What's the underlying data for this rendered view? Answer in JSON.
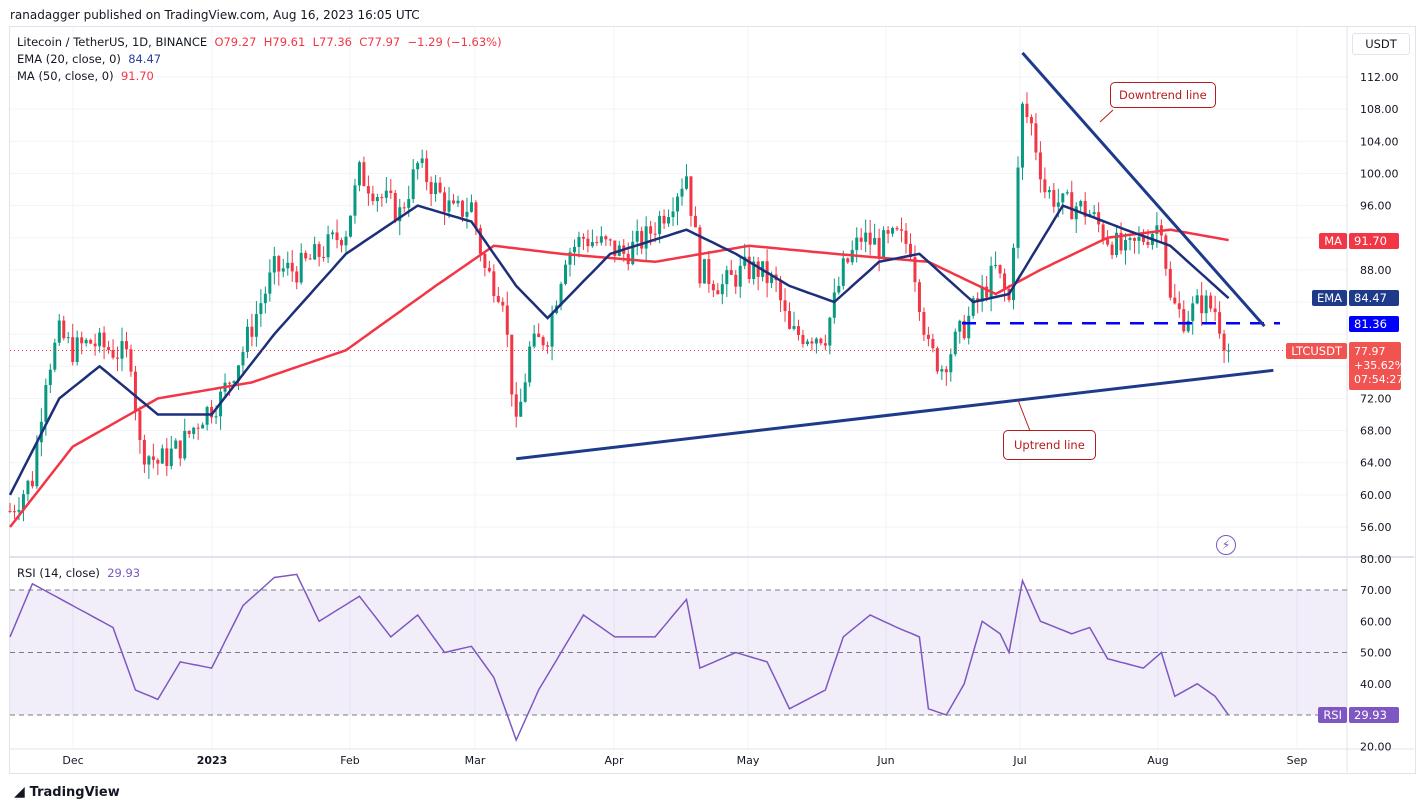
{
  "publisher": "ranadagger published on TradingView.com, Aug 16, 2023 16:05 UTC",
  "legend": {
    "symbol": "Litecoin / TetherUS, 1D, BINANCE",
    "o": "O79.27",
    "h": "H79.61",
    "l": "L77.36",
    "c": "C77.97",
    "change": "−1.29 (−1.63%)",
    "ema": "EMA (20, close, 0)",
    "ema_val": "84.47",
    "ma": "MA (50, close, 0)",
    "ma_val": "91.70",
    "rsi": "RSI (14, close)",
    "rsi_val": "29.93"
  },
  "currency": "USDT",
  "tags": {
    "ma_label": "MA",
    "ma_val": "91.70",
    "ema_label": "EMA",
    "ema_val": "84.47",
    "level": "81.36",
    "sym": "LTCUSDT",
    "price": "77.97",
    "pct": "+35.62%",
    "timer": "07:54:27",
    "rsi_label": "RSI",
    "rsi_val": "29.93"
  },
  "annotations": {
    "downtrend": "Downtrend line",
    "uptrend": "Uptrend line"
  },
  "footer": "TradingView",
  "colors": {
    "up": "#089981",
    "down": "#f23645",
    "ema": "#1e2f7a",
    "ma": "#f23645",
    "trend": "#1e3a8a",
    "rsi": "#7e57c2"
  },
  "chart_data": {
    "type": "candlestick",
    "x_ticks": [
      "Dec",
      "2023",
      "Feb",
      "Mar",
      "Apr",
      "May",
      "Jun",
      "Jul",
      "Aug",
      "Sep"
    ],
    "price_ticks": [
      56,
      60,
      64,
      68,
      72,
      76,
      80,
      84,
      88,
      92,
      96,
      100,
      104,
      108,
      112
    ],
    "rsi_ticks": [
      20,
      30,
      40,
      50,
      60,
      70,
      80
    ],
    "ylim": [
      53,
      116
    ],
    "close_keypoints": [
      [
        "2022-11-17",
        58
      ],
      [
        "2022-11-22",
        62
      ],
      [
        "2022-11-25",
        75
      ],
      [
        "2022-11-28",
        80
      ],
      [
        "2022-12-01",
        78
      ],
      [
        "2022-12-05",
        79
      ],
      [
        "2022-12-10",
        78
      ],
      [
        "2022-12-14",
        77
      ],
      [
        "2022-12-16",
        66
      ],
      [
        "2022-12-20",
        64
      ],
      [
        "2022-12-25",
        66
      ],
      [
        "2022-12-30",
        70
      ],
      [
        "2023-01-03",
        72
      ],
      [
        "2023-01-08",
        78
      ],
      [
        "2023-01-12",
        84
      ],
      [
        "2023-01-15",
        88
      ],
      [
        "2023-01-20",
        88
      ],
      [
        "2023-01-25",
        90
      ],
      [
        "2023-01-31",
        93
      ],
      [
        "2023-02-03",
        100
      ],
      [
        "2023-02-08",
        97
      ],
      [
        "2023-02-12",
        95
      ],
      [
        "2023-02-16",
        101
      ],
      [
        "2023-02-20",
        98
      ],
      [
        "2023-02-24",
        95
      ],
      [
        "2023-02-28",
        96
      ],
      [
        "2023-03-03",
        88
      ],
      [
        "2023-03-07",
        85
      ],
      [
        "2023-03-10",
        68
      ],
      [
        "2023-03-13",
        78
      ],
      [
        "2023-03-17",
        80
      ],
      [
        "2023-03-21",
        90
      ],
      [
        "2023-03-25",
        92
      ],
      [
        "2023-03-30",
        91
      ],
      [
        "2023-04-03",
        90
      ],
      [
        "2023-04-08",
        92
      ],
      [
        "2023-04-13",
        96
      ],
      [
        "2023-04-17",
        100
      ],
      [
        "2023-04-20",
        88
      ],
      [
        "2023-04-25",
        86
      ],
      [
        "2023-04-30",
        88
      ],
      [
        "2023-05-03",
        88
      ],
      [
        "2023-05-07",
        86
      ],
      [
        "2023-05-10",
        80
      ],
      [
        "2023-05-14",
        80
      ],
      [
        "2023-05-18",
        80
      ],
      [
        "2023-05-22",
        88
      ],
      [
        "2023-05-26",
        92
      ],
      [
        "2023-05-30",
        91
      ],
      [
        "2023-06-03",
        92
      ],
      [
        "2023-06-06",
        91
      ],
      [
        "2023-06-10",
        78
      ],
      [
        "2023-06-13",
        76
      ],
      [
        "2023-06-17",
        80
      ],
      [
        "2023-06-21",
        84
      ],
      [
        "2023-06-25",
        88
      ],
      [
        "2023-06-28",
        84
      ],
      [
        "2023-07-01",
        108
      ],
      [
        "2023-07-03",
        106
      ],
      [
        "2023-07-06",
        98
      ],
      [
        "2023-07-10",
        96
      ],
      [
        "2023-07-13",
        96
      ],
      [
        "2023-07-16",
        95
      ],
      [
        "2023-07-20",
        92
      ],
      [
        "2023-07-24",
        90
      ],
      [
        "2023-07-28",
        92
      ],
      [
        "2023-08-01",
        94
      ],
      [
        "2023-08-03",
        84
      ],
      [
        "2023-08-06",
        82
      ],
      [
        "2023-08-10",
        84
      ],
      [
        "2023-08-13",
        83
      ],
      [
        "2023-08-16",
        77.97
      ]
    ],
    "ema20_keypoints": [
      [
        "2022-11-17",
        60
      ],
      [
        "2022-11-28",
        72
      ],
      [
        "2022-12-07",
        76
      ],
      [
        "2022-12-20",
        70
      ],
      [
        "2023-01-01",
        70
      ],
      [
        "2023-01-15",
        80
      ],
      [
        "2023-01-31",
        90
      ],
      [
        "2023-02-16",
        96
      ],
      [
        "2023-02-28",
        94
      ],
      [
        "2023-03-10",
        86
      ],
      [
        "2023-03-17",
        82
      ],
      [
        "2023-03-31",
        90
      ],
      [
        "2023-04-17",
        93
      ],
      [
        "2023-04-28",
        90
      ],
      [
        "2023-05-10",
        86
      ],
      [
        "2023-05-20",
        84
      ],
      [
        "2023-05-30",
        89
      ],
      [
        "2023-06-08",
        90
      ],
      [
        "2023-06-20",
        84
      ],
      [
        "2023-06-28",
        85
      ],
      [
        "2023-07-10",
        96
      ],
      [
        "2023-07-24",
        93
      ],
      [
        "2023-08-03",
        91
      ],
      [
        "2023-08-16",
        84.47
      ]
    ],
    "ma50_keypoints": [
      [
        "2022-11-17",
        56
      ],
      [
        "2022-12-01",
        66
      ],
      [
        "2022-12-20",
        72
      ],
      [
        "2023-01-10",
        74
      ],
      [
        "2023-01-31",
        78
      ],
      [
        "2023-02-20",
        86
      ],
      [
        "2023-03-05",
        91
      ],
      [
        "2023-03-20",
        90
      ],
      [
        "2023-04-10",
        89
      ],
      [
        "2023-05-01",
        91
      ],
      [
        "2023-05-20",
        90
      ],
      [
        "2023-06-10",
        89
      ],
      [
        "2023-06-25",
        85
      ],
      [
        "2023-07-05",
        88
      ],
      [
        "2023-07-20",
        92
      ],
      [
        "2023-08-03",
        93
      ],
      [
        "2023-08-16",
        91.7
      ]
    ],
    "rsi_keypoints": [
      [
        "2022-11-17",
        55
      ],
      [
        "2022-11-22",
        72
      ],
      [
        "2022-12-01",
        65
      ],
      [
        "2022-12-10",
        58
      ],
      [
        "2022-12-15",
        38
      ],
      [
        "2022-12-20",
        35
      ],
      [
        "2022-12-25",
        47
      ],
      [
        "2023-01-01",
        45
      ],
      [
        "2023-01-08",
        65
      ],
      [
        "2023-01-15",
        74
      ],
      [
        "2023-01-20",
        75
      ],
      [
        "2023-01-25",
        60
      ],
      [
        "2023-02-03",
        68
      ],
      [
        "2023-02-10",
        55
      ],
      [
        "2023-02-16",
        62
      ],
      [
        "2023-02-22",
        50
      ],
      [
        "2023-02-28",
        52
      ],
      [
        "2023-03-05",
        42
      ],
      [
        "2023-03-10",
        22
      ],
      [
        "2023-03-15",
        38
      ],
      [
        "2023-03-20",
        50
      ],
      [
        "2023-03-25",
        62
      ],
      [
        "2023-04-01",
        55
      ],
      [
        "2023-04-10",
        55
      ],
      [
        "2023-04-17",
        67
      ],
      [
        "2023-04-20",
        45
      ],
      [
        "2023-04-28",
        50
      ],
      [
        "2023-05-05",
        47
      ],
      [
        "2023-05-10",
        32
      ],
      [
        "2023-05-18",
        38
      ],
      [
        "2023-05-22",
        55
      ],
      [
        "2023-05-28",
        62
      ],
      [
        "2023-06-03",
        58
      ],
      [
        "2023-06-08",
        55
      ],
      [
        "2023-06-10",
        32
      ],
      [
        "2023-06-14",
        30
      ],
      [
        "2023-06-18",
        40
      ],
      [
        "2023-06-22",
        60
      ],
      [
        "2023-06-26",
        56
      ],
      [
        "2023-06-28",
        50
      ],
      [
        "2023-07-01",
        73
      ],
      [
        "2023-07-05",
        60
      ],
      [
        "2023-07-12",
        56
      ],
      [
        "2023-07-16",
        58
      ],
      [
        "2023-07-20",
        48
      ],
      [
        "2023-07-28",
        45
      ],
      [
        "2023-08-01",
        50
      ],
      [
        "2023-08-04",
        36
      ],
      [
        "2023-08-09",
        40
      ],
      [
        "2023-08-13",
        36
      ],
      [
        "2023-08-16",
        29.93
      ]
    ],
    "horizontal_level": 81.36,
    "downtrend_line": [
      [
        "2023-07-01",
        115
      ],
      [
        "2023-08-24",
        81
      ]
    ],
    "uptrend_line": [
      [
        "2023-03-10",
        64.5
      ],
      [
        "2023-08-26",
        75.5
      ]
    ]
  }
}
